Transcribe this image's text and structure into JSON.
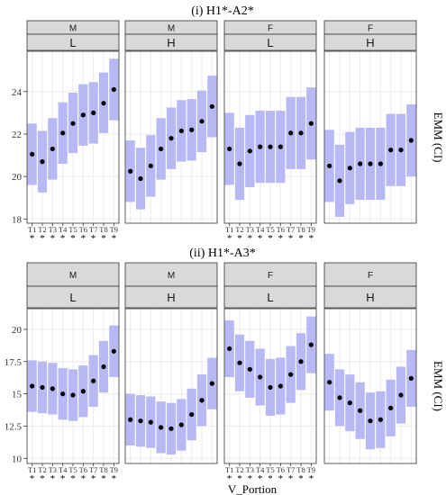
{
  "figure": {
    "x_axis_title": "V_Portion",
    "significance_marker": "*"
  },
  "chart_data": [
    {
      "type": "scatter",
      "title": "(i) H1*-A2*",
      "ylabel": "EMM (CI)",
      "ylim": [
        17.8,
        25.9
      ],
      "yticks": [
        18,
        20,
        22,
        24
      ],
      "x": [
        "T1",
        "T2",
        "T3",
        "T4",
        "T5",
        "T6",
        "T7",
        "T8",
        "T9"
      ],
      "grid": true,
      "panels": [
        {
          "strip_top": "M",
          "strip_bottom": "L",
          "emm": [
            21.05,
            20.7,
            21.3,
            22.05,
            22.5,
            22.9,
            23.0,
            23.45,
            24.1
          ],
          "lower": [
            19.6,
            19.25,
            19.85,
            20.6,
            21.1,
            21.45,
            21.55,
            22.05,
            22.65
          ],
          "upper": [
            22.5,
            22.15,
            22.75,
            23.5,
            23.95,
            24.35,
            24.45,
            24.9,
            25.55
          ]
        },
        {
          "strip_top": "M",
          "strip_bottom": "H",
          "emm": [
            20.25,
            19.9,
            20.5,
            21.3,
            21.8,
            22.15,
            22.2,
            22.6,
            23.3
          ],
          "lower": [
            18.8,
            18.45,
            19.05,
            19.85,
            20.35,
            20.7,
            20.75,
            21.15,
            21.85
          ],
          "upper": [
            21.7,
            21.35,
            21.95,
            22.75,
            23.25,
            23.6,
            23.65,
            24.05,
            24.75
          ]
        },
        {
          "strip_top": "F",
          "strip_bottom": "L",
          "emm": [
            21.3,
            20.6,
            21.2,
            21.4,
            21.4,
            21.4,
            22.05,
            22.05,
            22.5
          ],
          "lower": [
            19.6,
            18.9,
            19.5,
            19.7,
            19.7,
            19.7,
            20.35,
            20.35,
            20.8
          ],
          "upper": [
            23.0,
            22.3,
            22.9,
            23.1,
            23.1,
            23.1,
            23.75,
            23.75,
            24.2
          ]
        },
        {
          "strip_top": "F",
          "strip_bottom": "H",
          "emm": [
            20.5,
            19.8,
            20.4,
            20.6,
            20.6,
            20.6,
            21.25,
            21.25,
            21.7
          ],
          "lower": [
            18.8,
            18.1,
            18.7,
            18.9,
            18.9,
            18.9,
            19.55,
            19.55,
            20.0
          ],
          "upper": [
            22.2,
            21.5,
            22.1,
            22.3,
            22.3,
            22.3,
            22.95,
            22.95,
            23.4
          ]
        }
      ]
    },
    {
      "type": "scatter",
      "title": "(ii) H1*-A3*",
      "ylabel": "EMM (CI)",
      "ylim": [
        9.6,
        21.6
      ],
      "yticks": [
        "10",
        "12.5",
        "15",
        "17.5",
        "20"
      ],
      "x": [
        "T1",
        "T2",
        "T3",
        "T4",
        "T5",
        "T6",
        "T7",
        "T8",
        "T9"
      ],
      "grid": true,
      "panels": [
        {
          "strip_top": "M",
          "strip_bottom": "L",
          "emm": [
            15.6,
            15.5,
            15.4,
            15.0,
            14.9,
            15.2,
            16.0,
            17.1,
            18.3
          ],
          "lower": [
            13.6,
            13.5,
            13.4,
            13.0,
            12.9,
            13.2,
            14.0,
            15.1,
            16.3
          ],
          "upper": [
            17.6,
            17.5,
            17.4,
            17.0,
            16.9,
            17.2,
            18.0,
            19.1,
            20.3
          ]
        },
        {
          "strip_top": "M",
          "strip_bottom": "H",
          "emm": [
            13.0,
            12.9,
            12.8,
            12.4,
            12.3,
            12.6,
            13.4,
            14.5,
            15.8
          ],
          "lower": [
            11.0,
            10.9,
            10.8,
            10.4,
            10.3,
            10.6,
            11.4,
            12.5,
            13.8
          ],
          "upper": [
            15.0,
            14.9,
            14.8,
            14.4,
            14.3,
            14.6,
            15.4,
            16.5,
            17.8
          ]
        },
        {
          "strip_top": "F",
          "strip_bottom": "L",
          "emm": [
            18.5,
            17.4,
            16.9,
            16.3,
            15.5,
            15.6,
            16.5,
            17.5,
            18.8
          ],
          "lower": [
            16.3,
            15.2,
            14.7,
            14.1,
            13.3,
            13.4,
            14.3,
            15.3,
            16.6
          ],
          "upper": [
            20.7,
            19.6,
            19.1,
            18.5,
            17.7,
            17.8,
            18.7,
            19.7,
            21.0
          ]
        },
        {
          "strip_top": "F",
          "strip_bottom": "H",
          "emm": [
            15.9,
            14.7,
            14.3,
            13.7,
            12.9,
            13.0,
            13.9,
            14.9,
            16.2
          ],
          "lower": [
            13.7,
            12.5,
            12.1,
            11.5,
            10.7,
            10.8,
            11.7,
            12.7,
            14.0
          ],
          "upper": [
            18.1,
            16.9,
            16.5,
            15.9,
            15.1,
            15.2,
            16.1,
            17.1,
            18.4
          ]
        }
      ]
    }
  ]
}
